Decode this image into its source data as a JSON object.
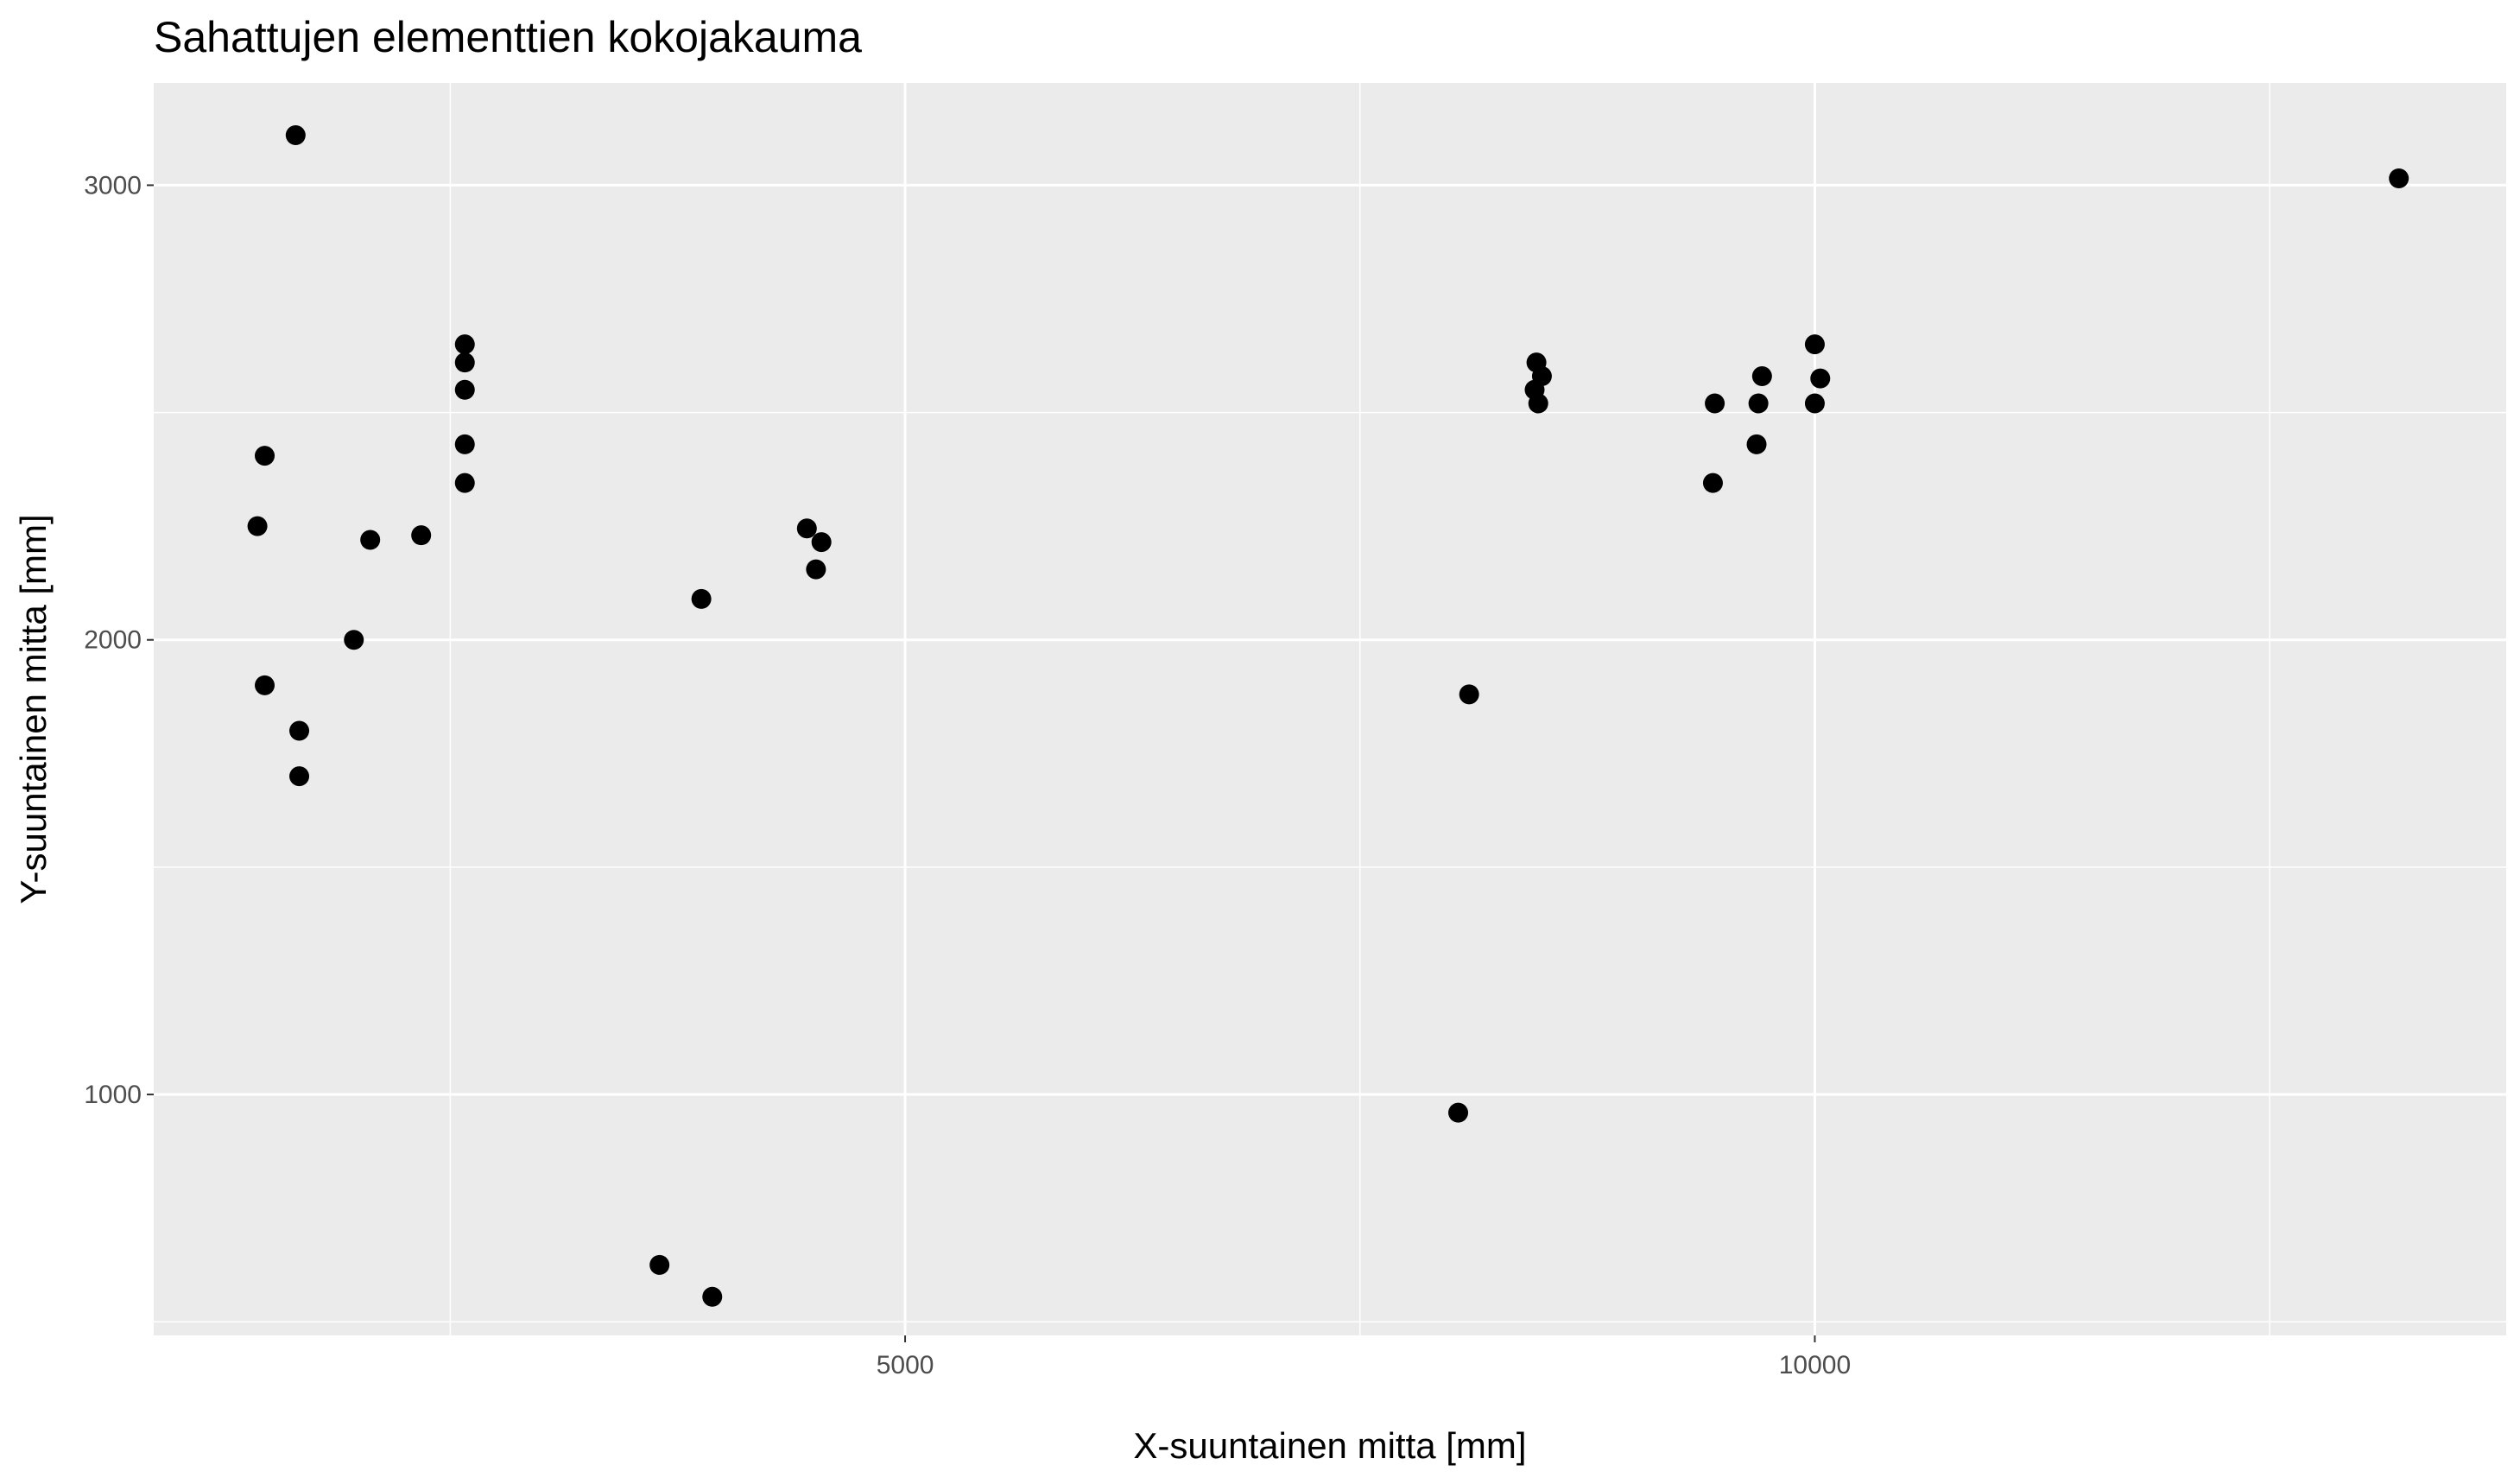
{
  "chart_data": {
    "type": "scatter",
    "title": "Sahattujen elementtien kokojakauma",
    "xlabel": "X-suuntainen mitta [mm]",
    "ylabel": "Y-suuntainen mitta [mm]",
    "xlim": [
      870,
      13800
    ],
    "ylim": [
      470,
      3225
    ],
    "x_ticks": [
      5000,
      10000
    ],
    "y_ticks": [
      1000,
      2000,
      3000
    ],
    "x_minor": [
      2500,
      7500,
      12500
    ],
    "y_minor": [
      500,
      1500,
      2500
    ],
    "grid": true,
    "colors": {
      "panel": "#ebebeb",
      "grid": "#ffffff",
      "point": "#000000",
      "tick": "#4d4d4d"
    },
    "points": [
      [
        1650,
        3110
      ],
      [
        1440,
        2250
      ],
      [
        1480,
        2405
      ],
      [
        1480,
        1900
      ],
      [
        1670,
        1800
      ],
      [
        1670,
        1700
      ],
      [
        1970,
        2000
      ],
      [
        2060,
        2220
      ],
      [
        2340,
        2230
      ],
      [
        2580,
        2650
      ],
      [
        2580,
        2610
      ],
      [
        2580,
        2550
      ],
      [
        2580,
        2430
      ],
      [
        2580,
        2345
      ],
      [
        3650,
        625
      ],
      [
        3880,
        2090
      ],
      [
        3940,
        555
      ],
      [
        4460,
        2245
      ],
      [
        4510,
        2155
      ],
      [
        4540,
        2215
      ],
      [
        8040,
        960
      ],
      [
        8100,
        1880
      ],
      [
        8470,
        2610
      ],
      [
        8460,
        2550
      ],
      [
        8480,
        2520
      ],
      [
        8500,
        2580
      ],
      [
        9450,
        2520
      ],
      [
        9440,
        2345
      ],
      [
        9690,
        2520
      ],
      [
        9680,
        2430
      ],
      [
        9710,
        2580
      ],
      [
        10000,
        2650
      ],
      [
        10000,
        2520
      ],
      [
        10030,
        2575
      ],
      [
        13210,
        3015
      ]
    ]
  }
}
